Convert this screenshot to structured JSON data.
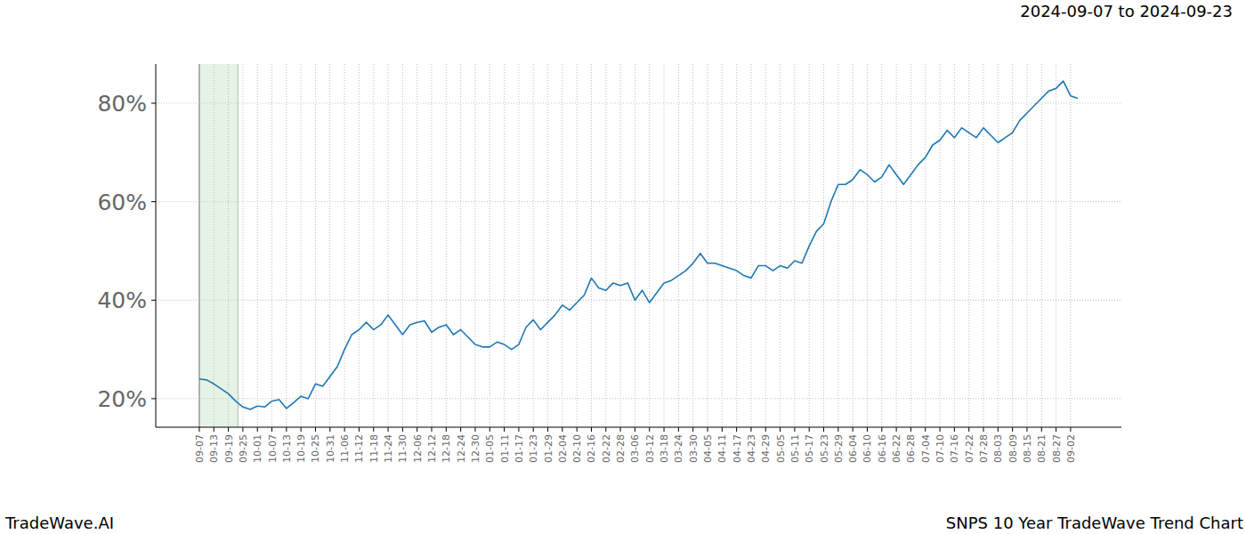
{
  "chart_data": {
    "type": "line",
    "title": "SNPS 10 Year TradeWave Trend Chart",
    "subtitle": "2024-09-07 to 2024-09-23",
    "annotations": [
      "TradeWave.AI"
    ],
    "color": "#1f77b4",
    "grid": true,
    "highlight": [
      0,
      16
    ],
    "xlim": [
      -18,
      381
    ],
    "ylim": [
      14.2,
      87.95
    ],
    "yticks": [
      {
        "value": 20,
        "label": "20%"
      },
      {
        "value": 40,
        "label": "40%"
      },
      {
        "value": 60,
        "label": "60%"
      },
      {
        "value": 80,
        "label": "80%"
      }
    ],
    "xticks": [
      {
        "value": 0,
        "label": "09-07"
      },
      {
        "value": 6,
        "label": "09-13"
      },
      {
        "value": 12,
        "label": "09-19"
      },
      {
        "value": 18,
        "label": "09-25"
      },
      {
        "value": 24,
        "label": "10-01"
      },
      {
        "value": 30,
        "label": "10-07"
      },
      {
        "value": 36,
        "label": "10-13"
      },
      {
        "value": 42,
        "label": "10-19"
      },
      {
        "value": 48,
        "label": "10-25"
      },
      {
        "value": 54,
        "label": "10-31"
      },
      {
        "value": 60,
        "label": "11-06"
      },
      {
        "value": 66,
        "label": "11-12"
      },
      {
        "value": 72,
        "label": "11-18"
      },
      {
        "value": 78,
        "label": "11-24"
      },
      {
        "value": 84,
        "label": "11-30"
      },
      {
        "value": 90,
        "label": "12-06"
      },
      {
        "value": 96,
        "label": "12-12"
      },
      {
        "value": 102,
        "label": "12-18"
      },
      {
        "value": 108,
        "label": "12-24"
      },
      {
        "value": 114,
        "label": "12-30"
      },
      {
        "value": 120,
        "label": "01-05"
      },
      {
        "value": 126,
        "label": "01-11"
      },
      {
        "value": 132,
        "label": "01-17"
      },
      {
        "value": 138,
        "label": "01-23"
      },
      {
        "value": 144,
        "label": "01-29"
      },
      {
        "value": 150,
        "label": "02-04"
      },
      {
        "value": 156,
        "label": "02-10"
      },
      {
        "value": 162,
        "label": "02-16"
      },
      {
        "value": 168,
        "label": "02-22"
      },
      {
        "value": 174,
        "label": "02-28"
      },
      {
        "value": 180,
        "label": "03-06"
      },
      {
        "value": 186,
        "label": "03-12"
      },
      {
        "value": 192,
        "label": "03-18"
      },
      {
        "value": 198,
        "label": "03-24"
      },
      {
        "value": 204,
        "label": "03-30"
      },
      {
        "value": 210,
        "label": "04-05"
      },
      {
        "value": 216,
        "label": "04-11"
      },
      {
        "value": 222,
        "label": "04-17"
      },
      {
        "value": 228,
        "label": "04-23"
      },
      {
        "value": 234,
        "label": "04-29"
      },
      {
        "value": 240,
        "label": "05-05"
      },
      {
        "value": 246,
        "label": "05-11"
      },
      {
        "value": 252,
        "label": "05-17"
      },
      {
        "value": 258,
        "label": "05-23"
      },
      {
        "value": 264,
        "label": "05-29"
      },
      {
        "value": 270,
        "label": "06-04"
      },
      {
        "value": 276,
        "label": "06-10"
      },
      {
        "value": 282,
        "label": "06-16"
      },
      {
        "value": 288,
        "label": "06-22"
      },
      {
        "value": 294,
        "label": "06-28"
      },
      {
        "value": 300,
        "label": "07-04"
      },
      {
        "value": 306,
        "label": "07-10"
      },
      {
        "value": 312,
        "label": "07-16"
      },
      {
        "value": 318,
        "label": "07-22"
      },
      {
        "value": 324,
        "label": "07-28"
      },
      {
        "value": 330,
        "label": "08-03"
      },
      {
        "value": 336,
        "label": "08-09"
      },
      {
        "value": 342,
        "label": "08-15"
      },
      {
        "value": 348,
        "label": "08-21"
      },
      {
        "value": 354,
        "label": "08-27"
      },
      {
        "value": 360,
        "label": "09-02"
      }
    ],
    "x": [
      0,
      3,
      6,
      9,
      12,
      15,
      18,
      21,
      24,
      27,
      30,
      33,
      36,
      39,
      42,
      45,
      48,
      51,
      54,
      57,
      60,
      63,
      66,
      69,
      72,
      75,
      78,
      81,
      84,
      87,
      90,
      93,
      96,
      99,
      102,
      105,
      108,
      111,
      114,
      117,
      120,
      123,
      126,
      129,
      132,
      135,
      138,
      141,
      144,
      147,
      150,
      153,
      156,
      159,
      162,
      165,
      168,
      171,
      174,
      177,
      180,
      183,
      186,
      189,
      192,
      195,
      198,
      201,
      204,
      207,
      210,
      213,
      216,
      219,
      222,
      225,
      228,
      231,
      234,
      237,
      240,
      243,
      246,
      249,
      252,
      255,
      258,
      261,
      264,
      267,
      270,
      273,
      276,
      279,
      282,
      285,
      288,
      291,
      294,
      297,
      300,
      303,
      306,
      309,
      312,
      315,
      318,
      321,
      324,
      327,
      330,
      333,
      336,
      339,
      342,
      345,
      348,
      351,
      354,
      357,
      360,
      363
    ],
    "values": [
      24,
      23.8,
      23,
      22,
      21,
      19.5,
      18.3,
      17.8,
      18.5,
      18.3,
      19.5,
      19.8,
      18,
      19.2,
      20.5,
      20,
      23,
      22.5,
      24.5,
      26.5,
      30,
      33,
      34,
      35.5,
      34,
      35,
      37,
      35,
      33,
      35,
      35.5,
      35.8,
      33.5,
      34.5,
      35,
      33,
      34,
      32.5,
      31,
      30.5,
      30.5,
      31.5,
      31,
      30,
      31,
      34.5,
      36,
      34,
      35.5,
      37,
      39,
      38,
      39.5,
      41,
      44.5,
      42.5,
      42,
      43.5,
      43,
      43.5,
      40,
      42,
      39.5,
      41.5,
      43.5,
      44,
      45,
      46,
      47.5,
      49.5,
      47.5,
      47.5,
      47,
      46.5,
      46,
      45,
      44.5,
      47,
      47,
      46,
      47,
      46.5,
      48,
      47.5,
      51,
      54,
      55.5,
      60,
      63.5,
      63.5,
      64.5,
      66.5,
      65.5,
      64,
      65,
      67.5,
      65.5,
      63.5,
      65.5,
      67.5,
      69,
      71.5,
      72.5,
      74.5,
      73,
      75,
      74,
      73,
      75,
      73.5,
      72,
      73,
      74,
      76.5,
      78,
      79.5,
      81,
      82.5,
      83,
      84.5,
      81.5,
      81
    ]
  }
}
